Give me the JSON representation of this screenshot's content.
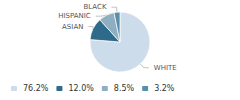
{
  "chart_data": {
    "type": "pie",
    "categories": [
      "WHITE",
      "ASIAN",
      "HISPANIC",
      "BLACK"
    ],
    "values": [
      76.2,
      12.0,
      8.5,
      3.2
    ],
    "value_labels": [
      "76.2%",
      "12.0%",
      "8.5%",
      "3.2%"
    ],
    "colors": [
      "#cddcea",
      "#2e6b8a",
      "#8fafc0",
      "#5a8fa8"
    ],
    "legend": "lower left"
  }
}
